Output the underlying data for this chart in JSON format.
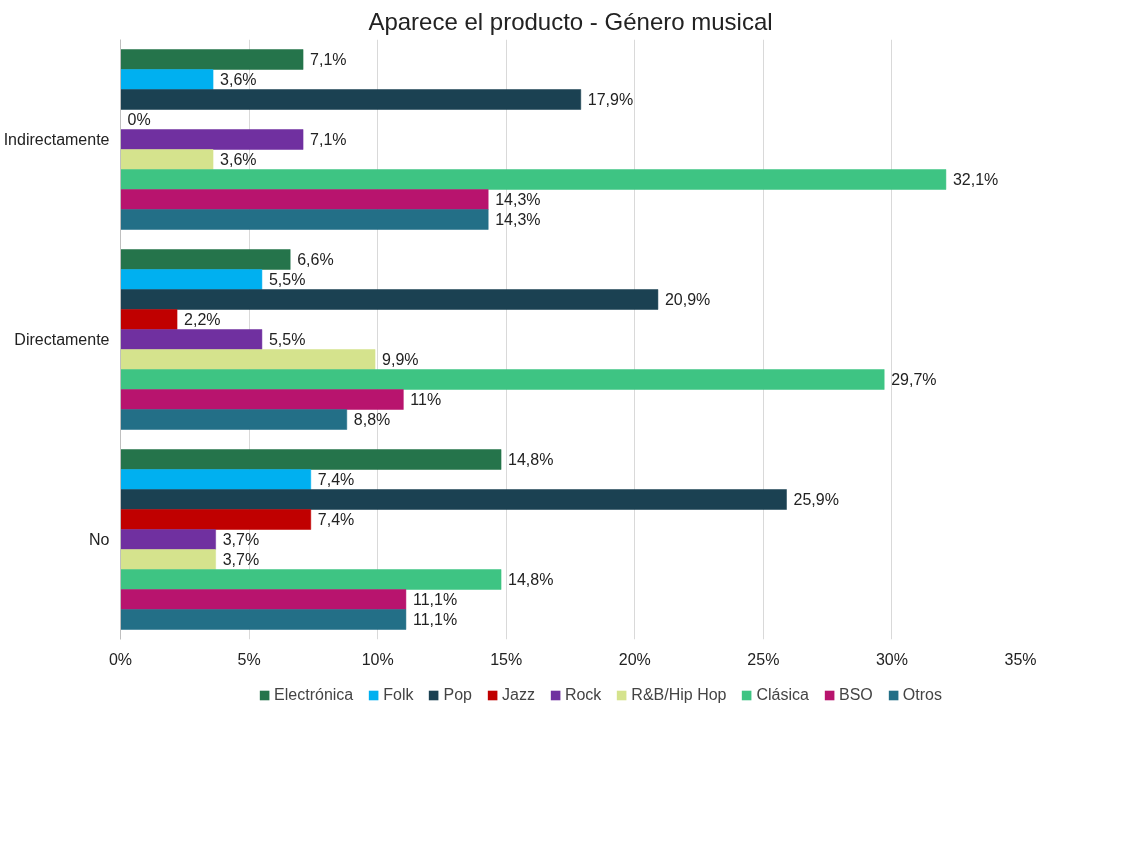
{
  "chart_data": {
    "type": "bar",
    "orientation": "horizontal",
    "title": "Aparece el producto - Género musical",
    "categories": [
      "Indirectamente",
      "Directamente",
      "No"
    ],
    "xlim": [
      0,
      35
    ],
    "xticks": [
      {
        "value": 0,
        "label": "0%"
      },
      {
        "value": 5,
        "label": "5%"
      },
      {
        "value": 10,
        "label": "10%"
      },
      {
        "value": 15,
        "label": "15%"
      },
      {
        "value": 20,
        "label": "20%"
      },
      {
        "value": 25,
        "label": "25%"
      },
      {
        "value": 30,
        "label": "30%"
      },
      {
        "value": 35,
        "label": "35%"
      }
    ],
    "grid": "x",
    "legend": "bottom",
    "series": [
      {
        "name": "Electrónica",
        "color": "#25744b",
        "values": [
          7.1,
          6.6,
          14.8
        ],
        "value_labels": [
          "7,1%",
          "6,6%",
          "14,8%"
        ]
      },
      {
        "name": "Folk",
        "color": "#00b0f0",
        "values": [
          3.6,
          5.5,
          7.4
        ],
        "value_labels": [
          "3,6%",
          "5,5%",
          "7,4%"
        ]
      },
      {
        "name": "Pop",
        "color": "#1b4152",
        "values": [
          17.9,
          20.9,
          25.9
        ],
        "value_labels": [
          "17,9%",
          "20,9%",
          "25,9%"
        ]
      },
      {
        "name": "Jazz",
        "color": "#c00000",
        "values": [
          0,
          2.2,
          7.4
        ],
        "value_labels": [
          "0%",
          "2,2%",
          "7,4%"
        ]
      },
      {
        "name": "Rock",
        "color": "#7030a0",
        "values": [
          7.1,
          5.5,
          3.7
        ],
        "value_labels": [
          "7,1%",
          "5,5%",
          "3,7%"
        ]
      },
      {
        "name": "R&B/Hip Hop",
        "color": "#d5e38d",
        "values": [
          3.6,
          9.9,
          3.7
        ],
        "value_labels": [
          "3,6%",
          "9,9%",
          "3,7%"
        ]
      },
      {
        "name": "Clásica",
        "color": "#3ec483",
        "values": [
          32.1,
          29.7,
          14.8
        ],
        "value_labels": [
          "32,1%",
          "29,7%",
          "14,8%"
        ]
      },
      {
        "name": "BSO",
        "color": "#b8146e",
        "values": [
          14.3,
          11,
          11.1
        ],
        "value_labels": [
          "14,3%",
          "11%",
          "11,1%"
        ]
      },
      {
        "name": "Otros",
        "color": "#236f87",
        "values": [
          14.3,
          8.8,
          11.1
        ],
        "value_labels": [
          "14,3%",
          "8,8%",
          "11,1%"
        ]
      }
    ]
  }
}
